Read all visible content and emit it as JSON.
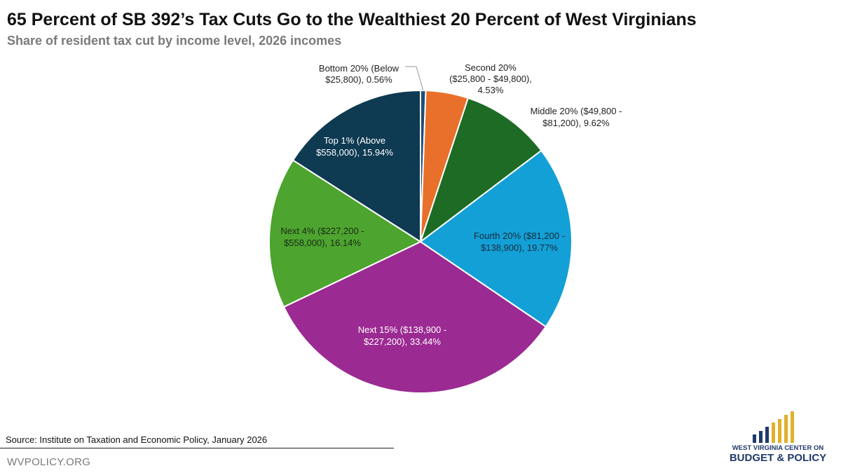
{
  "chart_data": {
    "type": "pie",
    "title": "65 Percent of SB 392’s Tax Cuts Go to the Wealthiest 20 Percent of West Virginians",
    "subtitle": "Share of resident tax cut by income level, 2026 incomes",
    "unit": "%",
    "start_angle_deg": 0,
    "direction": "clockwise",
    "slices": [
      {
        "name": "bottom-20",
        "label": [
          "Bottom 20% (Below",
          "$25,800), 0.56%"
        ],
        "value": 0.56,
        "color": "#1f4e79",
        "label_placement": "outside",
        "label_color": "#222222"
      },
      {
        "name": "second-20",
        "label": [
          "Second 20%",
          "($25,800 - $49,800),",
          "4.53%"
        ],
        "value": 4.53,
        "color": "#e8702a",
        "label_placement": "outside",
        "label_color": "#222222"
      },
      {
        "name": "middle-20",
        "label": [
          "Middle 20% ($49,800 -",
          "$81,200), 9.62%"
        ],
        "value": 9.62,
        "color": "#1d6b24",
        "label_placement": "outside",
        "label_color": "#222222"
      },
      {
        "name": "fourth-20",
        "label": [
          "Fourth 20% ($81,200 -",
          "$138,900), 19.77%"
        ],
        "value": 19.77,
        "color": "#13a0d6",
        "label_placement": "inside",
        "label_color": "#1a2a3a"
      },
      {
        "name": "next-15",
        "label": [
          "Next 15% ($138,900 -",
          "$227,200), 33.44%"
        ],
        "value": 33.44,
        "color": "#9b2a92",
        "label_placement": "inside",
        "label_color": "#ffffff"
      },
      {
        "name": "next-4",
        "label": [
          "Next 4% ($227,200 -",
          "$558,000), 16.14%"
        ],
        "value": 16.14,
        "color": "#4da42e",
        "label_placement": "inside",
        "label_color": "#1a2a1a"
      },
      {
        "name": "top-1",
        "label": [
          "Top 1% (Above",
          "$558,000), 15.94%"
        ],
        "value": 15.94,
        "color": "#0e3a52",
        "label_placement": "inside",
        "label_color": "#ffffff"
      }
    ]
  },
  "footer": {
    "source": "Source: Institute on Taxation and Economic Policy, January 2026",
    "website": "WVPOLICY.ORG"
  },
  "logo": {
    "line1": "WEST VIRGINIA CENTER ON",
    "line2": "BUDGET & POLICY",
    "bar_color_1": "#1f3a6b",
    "bar_color_2": "#e0b02a"
  }
}
